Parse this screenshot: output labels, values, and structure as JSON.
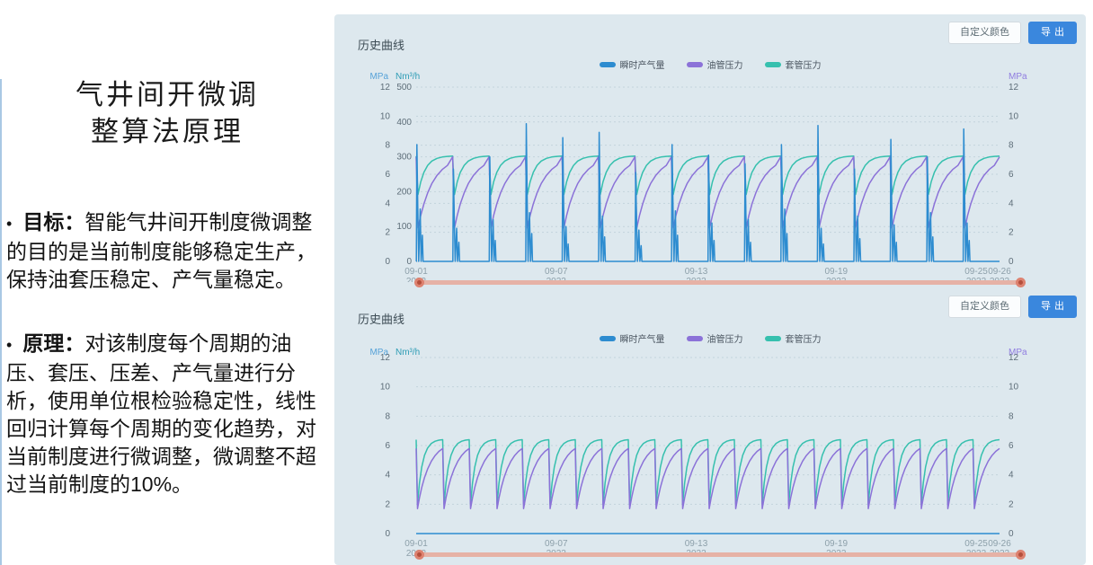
{
  "slide": {
    "title_line1": "气井间开微调",
    "title_line2": "整算法原理",
    "bullets": [
      {
        "bullet": "•",
        "lead": "目标：",
        "text": "智能气井间开制度微调整的目的是当前制度能够稳定生产，保持油套压稳定、产气量稳定。"
      },
      {
        "bullet": "•",
        "lead": "原理：",
        "text": "对该制度每个周期的油压、套压、压差、产气量进行分析，使用单位根检验稳定性，线性回归计算每个周期的变化趋势，对当前制度进行微调整，微调整不超过当前制度的10%。"
      }
    ]
  },
  "panel": {
    "background": "#dde8ee",
    "sections": [
      {
        "title": "历史曲线",
        "buttons": {
          "custom_color": "自定义颜色",
          "export": "导出"
        }
      },
      {
        "title": "历史曲线",
        "buttons": {
          "custom_color": "自定义颜色",
          "export": "导出"
        }
      }
    ]
  },
  "colors": {
    "gas_line": "#2d8cd0",
    "tubing_line": "#8b72d8",
    "casing_line": "#36c0ae",
    "axis_pressure_left": "#56a2d8",
    "axis_gas": "#2d9cb5",
    "axis_pressure_right": "#8f7ce0",
    "grid": "#c3d3dc",
    "slider_track": "#e6b2a6",
    "slider_handle": "#dd8270",
    "export_button": "#3a87dd"
  },
  "chart_data": [
    {
      "type": "line",
      "title": "历史曲线",
      "legend": [
        {
          "name": "瞬时产气量",
          "color": "#2d8cd0"
        },
        {
          "name": "油管压力",
          "color": "#8b72d8"
        },
        {
          "name": "套管压力",
          "color": "#36c0ae"
        }
      ],
      "x": {
        "span_days": 25,
        "ticks": [
          {
            "day": 0,
            "label": "09-01",
            "year": "2022"
          },
          {
            "day": 6,
            "label": "09-07",
            "year": "2022"
          },
          {
            "day": 12,
            "label": "09-13",
            "year": "2022"
          },
          {
            "day": 18,
            "label": "09-19",
            "year": "2022"
          },
          {
            "day": 24,
            "label": "09-25",
            "year": "2022"
          },
          {
            "day": 25,
            "label": "09-26",
            "year": "2022"
          }
        ]
      },
      "y_axes": [
        {
          "id": "pressure_left",
          "unit": "MPa",
          "min": 0,
          "max": 12,
          "ticks": [
            0,
            2,
            4,
            6,
            8,
            10,
            12
          ],
          "color": "#56a2d8",
          "side": "left",
          "show_tick_labels": true
        },
        {
          "id": "gas",
          "unit": "Nm³/h",
          "min": 0,
          "max": 500,
          "ticks": [
            0,
            100,
            200,
            300,
            400,
            500
          ],
          "color": "#2d9cb5",
          "side": "left",
          "show_tick_labels": true
        },
        {
          "id": "pressure_right",
          "unit": "MPa",
          "min": 0,
          "max": 12,
          "ticks": [
            0,
            2,
            4,
            6,
            8,
            10,
            12
          ],
          "color": "#8f7ce0",
          "side": "right",
          "show_tick_labels": true
        }
      ],
      "num_cycles": 16,
      "series": [
        {
          "name": "套管压力",
          "axis": "pressure_left",
          "color": "#36c0ae",
          "pattern": "sawtooth",
          "min": 4.6,
          "max": 7.25,
          "rise_k": 5.0,
          "tip": 0
        },
        {
          "name": "油管压力",
          "axis": "pressure_left",
          "color": "#8b72d8",
          "pattern": "sawtooth",
          "min": 2.3,
          "max": 6.8,
          "rise_k": 2.4,
          "tip": 0.4
        },
        {
          "name": "瞬时产气量",
          "axis": "gas",
          "color": "#2d8cd0",
          "pattern": "spikes",
          "cycle_peaks": [
            335,
            265,
            300,
            395,
            355,
            370,
            255,
            335,
            305,
            280,
            335,
            390,
            265,
            350,
            300,
            380
          ],
          "minor_peaks_1": [
            150,
            95,
            120,
            140,
            100,
            130,
            90,
            145,
            110,
            120,
            150,
            95,
            130,
            105,
            140,
            110
          ],
          "minor_peaks_2": [
            75,
            55,
            60,
            80,
            50,
            70,
            45,
            75,
            60,
            55,
            80,
            50,
            65,
            55,
            70,
            60
          ]
        }
      ]
    },
    {
      "type": "line",
      "title": "历史曲线",
      "legend": [
        {
          "name": "瞬时产气量",
          "color": "#2d8cd0"
        },
        {
          "name": "油管压力",
          "color": "#8b72d8"
        },
        {
          "name": "套管压力",
          "color": "#36c0ae"
        }
      ],
      "x": {
        "span_days": 25,
        "ticks": [
          {
            "day": 0,
            "label": "09-01",
            "year": "2022"
          },
          {
            "day": 6,
            "label": "09-07",
            "year": "2022"
          },
          {
            "day": 12,
            "label": "09-13",
            "year": "2022"
          },
          {
            "day": 18,
            "label": "09-19",
            "year": "2022"
          },
          {
            "day": 24,
            "label": "09-25",
            "year": "2022"
          },
          {
            "day": 25,
            "label": "09-26",
            "year": "2022"
          }
        ]
      },
      "y_axes": [
        {
          "id": "pressure_left",
          "unit": "MPa",
          "min": 0,
          "max": 12,
          "ticks": [
            0,
            2,
            4,
            6,
            8,
            10,
            12
          ],
          "color": "#56a2d8",
          "side": "left",
          "show_tick_labels": true
        },
        {
          "id": "gas",
          "unit": "Nm³/h",
          "min": 0,
          "max": 500,
          "ticks": [],
          "color": "#2d9cb5",
          "side": "left",
          "show_tick_labels": false
        },
        {
          "id": "pressure_right",
          "unit": "MPa",
          "min": 0,
          "max": 12,
          "ticks": [
            0,
            2,
            4,
            6,
            8,
            10,
            12
          ],
          "color": "#8f7ce0",
          "side": "right",
          "show_tick_labels": true
        }
      ],
      "num_cycles": 22,
      "series": [
        {
          "name": "套管压力",
          "axis": "pressure_left",
          "color": "#36c0ae",
          "pattern": "sawtooth",
          "min": 2.0,
          "max": 6.4,
          "rise_k": 5.0,
          "tip": 0
        },
        {
          "name": "油管压力",
          "axis": "pressure_left",
          "color": "#8b72d8",
          "pattern": "sawtooth",
          "min": 1.7,
          "max": 5.8,
          "rise_k": 2.2,
          "tip": 0
        },
        {
          "name": "瞬时产气量",
          "axis": "gas",
          "color": "#2d8cd0",
          "pattern": "spikes",
          "cycle_peaks": [],
          "minor_peaks_1": [],
          "minor_peaks_2": []
        }
      ]
    }
  ]
}
